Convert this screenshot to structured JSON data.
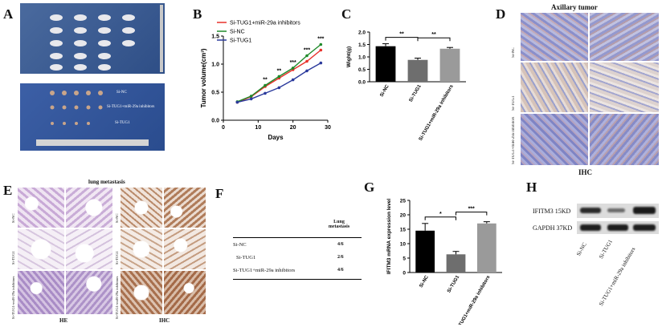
{
  "panels": {
    "A": "A",
    "B": "B",
    "C": "C",
    "D": "D",
    "E": "E",
    "F": "F",
    "G": "G",
    "H": "H"
  },
  "panel_a": {
    "labels": [
      "Si-NC",
      "Si-TUG1+miR-29a inhibitors",
      "Si-TUG1"
    ]
  },
  "panel_d": {
    "title": "Axillary tumor",
    "row_labels": [
      "Si-NC",
      "Si-TUG1",
      "Si-TUG1+miR-29a inhibitors"
    ],
    "caption": "IHC"
  },
  "panel_e": {
    "title": "lung metastasis",
    "left_row_labels": [
      "Si-NC",
      "Si-TUG1",
      "Si-TUG1+miR-29a inhibitors"
    ],
    "right_row_labels": [
      "Si-NC",
      "Si-TUG1",
      "Si-TUG1+miR-29a inhibitors"
    ],
    "caption_left": "HE",
    "caption_right": "IHC"
  },
  "panel_f": {
    "header": "Lung metastasis",
    "rows": [
      {
        "group": "Si-NC",
        "value": "4/6"
      },
      {
        "group": "Si-TUG1",
        "value": "2/6"
      },
      {
        "group": "Si-TUG1+miR-29a inhibitors",
        "value": "4/6"
      }
    ]
  },
  "panel_h": {
    "bands": [
      "IFITM3 15KD",
      "GAPDH 37KD"
    ],
    "lanes": [
      "Si-NC",
      "Si-TUG1",
      "Si-TUG1+miR-29a inhibitors"
    ]
  },
  "colors": {
    "red": "#e8312a",
    "green": "#1f8a2a",
    "blue": "#2b3a9c",
    "black": "#000000",
    "gray": "#6e6e6e",
    "lightgray": "#9a9a9a"
  },
  "chart_data": [
    {
      "panel": "B",
      "type": "line",
      "xlabel": "Days",
      "ylabel": "Tumor volume(cm³)",
      "x": [
        4,
        8,
        12,
        16,
        20,
        24,
        28
      ],
      "xlim": [
        0,
        30
      ],
      "ylim": [
        0,
        1.5
      ],
      "xticks": [
        "0",
        "10",
        "20",
        "30"
      ],
      "yticks": [
        "0.0",
        "0.5",
        "1.0",
        "1.5"
      ],
      "legend_position": "top-left",
      "series": [
        {
          "name": "Si-TUG1+miR-29a inhibitors",
          "color": "#e8312a",
          "values": [
            0.32,
            0.42,
            0.6,
            0.75,
            0.9,
            1.05,
            1.25
          ]
        },
        {
          "name": "Si-NC",
          "color": "#1f8a2a",
          "values": [
            0.33,
            0.43,
            0.62,
            0.78,
            0.93,
            1.15,
            1.35
          ]
        },
        {
          "name": "Si-TUG1",
          "color": "#2b3a9c",
          "values": [
            0.32,
            0.38,
            0.48,
            0.58,
            0.72,
            0.88,
            1.02
          ]
        }
      ],
      "annotations": [
        {
          "x": 12,
          "text": "**"
        },
        {
          "x": 16,
          "text": "**"
        },
        {
          "x": 20,
          "text": "***"
        },
        {
          "x": 24,
          "text": "***"
        },
        {
          "x": 28,
          "text": "***"
        }
      ]
    },
    {
      "panel": "C",
      "type": "bar",
      "ylabel": "Wight(g)",
      "categories": [
        "Si-NC",
        "Si-TUG1",
        "Si-TUG1+miR-29a inhibitors"
      ],
      "values": [
        1.43,
        0.88,
        1.33
      ],
      "errors": [
        0.1,
        0.07,
        0.05
      ],
      "colors": [
        "#000000",
        "#6e6e6e",
        "#9a9a9a"
      ],
      "ylim": [
        0,
        2.0
      ],
      "yticks": [
        "0.0",
        "0.5",
        "1.0",
        "1.5",
        "2.0"
      ],
      "significance": [
        {
          "from": 0,
          "to": 1,
          "text": "**"
        },
        {
          "from": 1,
          "to": 2,
          "text": "**"
        }
      ]
    },
    {
      "panel": "G",
      "type": "bar",
      "ylabel": "IFITM3 mRNA expression level",
      "categories": [
        "Si-NC",
        "Si-TUG1",
        "Si-TUG1+miR-29a inhibitors"
      ],
      "values": [
        14.5,
        6.3,
        17.0
      ],
      "errors": [
        2.5,
        1.0,
        0.6
      ],
      "colors": [
        "#000000",
        "#6e6e6e",
        "#9a9a9a"
      ],
      "ylim": [
        0,
        25
      ],
      "yticks": [
        "0",
        "5",
        "10",
        "15",
        "20",
        "25"
      ],
      "significance": [
        {
          "from": 0,
          "to": 1,
          "text": "*"
        },
        {
          "from": 1,
          "to": 2,
          "text": "***"
        }
      ]
    }
  ]
}
